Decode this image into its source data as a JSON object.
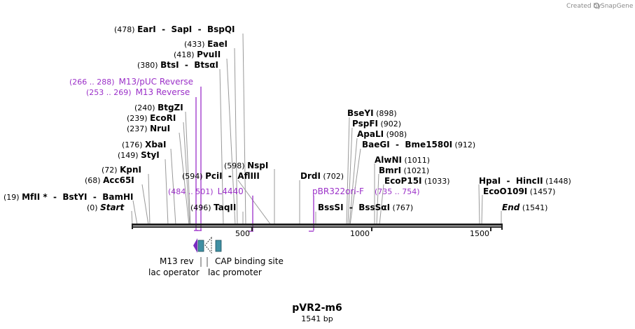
{
  "watermark": {
    "created_by": "Created by",
    "brand": "SnapGene"
  },
  "plasmid": {
    "name": "pVR2-m6",
    "size_label": "1541 bp"
  },
  "axis": {
    "range": [
      0,
      1541
    ],
    "ticks": [
      {
        "value": 500,
        "label": "500"
      },
      {
        "value": 1000,
        "label": "1000"
      },
      {
        "value": 1500,
        "label": "1500"
      }
    ]
  },
  "colors": {
    "primer": "#9b30c8",
    "feature_teal": "#3f8fa3",
    "feature_purple": "#7a2bbf",
    "line": "#999999"
  },
  "sites": [
    {
      "id": "earI",
      "parts": [
        {
          "t": "(478) ",
          "cls": "num"
        },
        {
          "t": "EarI",
          "cls": "b"
        },
        {
          "t": "  -  ",
          "cls": "b"
        },
        {
          "t": "SapI",
          "cls": "b"
        },
        {
          "t": "  -  ",
          "cls": "b"
        },
        {
          "t": "BspQI",
          "cls": "b"
        }
      ]
    },
    {
      "id": "eaeI",
      "parts": [
        {
          "t": "(433) ",
          "cls": "num"
        },
        {
          "t": "EaeI",
          "cls": "b"
        }
      ]
    },
    {
      "id": "pvuII",
      "parts": [
        {
          "t": "(418) ",
          "cls": "num"
        },
        {
          "t": "PvuII",
          "cls": "b"
        }
      ]
    },
    {
      "id": "btsI",
      "parts": [
        {
          "t": "(380) ",
          "cls": "num"
        },
        {
          "t": "BtsI",
          "cls": "b"
        },
        {
          "t": "  -  ",
          "cls": "b"
        },
        {
          "t": "BtsαI",
          "cls": "b"
        }
      ]
    },
    {
      "id": "btgZI",
      "parts": [
        {
          "t": "(240) ",
          "cls": "num"
        },
        {
          "t": "BtgZI",
          "cls": "b"
        }
      ]
    },
    {
      "id": "ecoRI",
      "parts": [
        {
          "t": "(239) ",
          "cls": "num"
        },
        {
          "t": "EcoRI",
          "cls": "b"
        }
      ]
    },
    {
      "id": "nruI",
      "parts": [
        {
          "t": "(237) ",
          "cls": "num"
        },
        {
          "t": "NruI",
          "cls": "b"
        }
      ]
    },
    {
      "id": "xbaI",
      "parts": [
        {
          "t": "(176) ",
          "cls": "num"
        },
        {
          "t": "XbaI",
          "cls": "b"
        }
      ]
    },
    {
      "id": "styI",
      "parts": [
        {
          "t": "(149) ",
          "cls": "num"
        },
        {
          "t": "StyI",
          "cls": "b"
        }
      ]
    },
    {
      "id": "kpnI",
      "parts": [
        {
          "t": "(72) ",
          "cls": "num"
        },
        {
          "t": "KpnI",
          "cls": "b"
        }
      ]
    },
    {
      "id": "acc65I",
      "parts": [
        {
          "t": "(68) ",
          "cls": "num"
        },
        {
          "t": "Acc65I",
          "cls": "b"
        }
      ]
    },
    {
      "id": "mfII",
      "parts": [
        {
          "t": "(19) ",
          "cls": "num"
        },
        {
          "t": "MfII *",
          "cls": "b"
        },
        {
          "t": "  -  ",
          "cls": "b"
        },
        {
          "t": "BstYI",
          "cls": "b"
        },
        {
          "t": "  -  ",
          "cls": "b"
        },
        {
          "t": "BamHI",
          "cls": "b"
        }
      ]
    },
    {
      "id": "start",
      "parts": [
        {
          "t": "(0) ",
          "cls": "num"
        },
        {
          "t": "Start",
          "cls": "b it"
        }
      ]
    },
    {
      "id": "pciI",
      "parts": [
        {
          "t": "(594) ",
          "cls": "num"
        },
        {
          "t": "PciI",
          "cls": "b"
        },
        {
          "t": "  -  ",
          "cls": "b"
        },
        {
          "t": "AflIII",
          "cls": "b"
        }
      ]
    },
    {
      "id": "nspI",
      "parts": [
        {
          "t": "(598) ",
          "cls": "num"
        },
        {
          "t": "NspI",
          "cls": "b"
        }
      ]
    },
    {
      "id": "taqII",
      "parts": [
        {
          "t": "(496) ",
          "cls": "num"
        },
        {
          "t": "TaqII",
          "cls": "b"
        }
      ]
    },
    {
      "id": "drdI",
      "parts": [
        {
          "t": "DrdI",
          "cls": "b"
        },
        {
          "t": " (702)",
          "cls": "num"
        }
      ]
    },
    {
      "id": "bssSI",
      "parts": [
        {
          "t": "BssSI",
          "cls": "b"
        },
        {
          "t": "  -  ",
          "cls": "b"
        },
        {
          "t": "BssSαI",
          "cls": "b"
        },
        {
          "t": " (767)",
          "cls": "num"
        }
      ]
    },
    {
      "id": "bseYI",
      "parts": [
        {
          "t": "BseYI",
          "cls": "b"
        },
        {
          "t": " (898)",
          "cls": "num"
        }
      ]
    },
    {
      "id": "pspFI",
      "parts": [
        {
          "t": "PspFI",
          "cls": "b"
        },
        {
          "t": " (902)",
          "cls": "num"
        }
      ]
    },
    {
      "id": "apaLI",
      "parts": [
        {
          "t": "ApaLI",
          "cls": "b"
        },
        {
          "t": " (908)",
          "cls": "num"
        }
      ]
    },
    {
      "id": "baeGI",
      "parts": [
        {
          "t": "BaeGI",
          "cls": "b"
        },
        {
          "t": "  -  ",
          "cls": "b"
        },
        {
          "t": "Bme1580I",
          "cls": "b"
        },
        {
          "t": " (912)",
          "cls": "num"
        }
      ]
    },
    {
      "id": "alwNI",
      "parts": [
        {
          "t": "AlwNI",
          "cls": "b"
        },
        {
          "t": " (1011)",
          "cls": "num"
        }
      ]
    },
    {
      "id": "bmrI",
      "parts": [
        {
          "t": "BmrI",
          "cls": "b"
        },
        {
          "t": " (1021)",
          "cls": "num"
        }
      ]
    },
    {
      "id": "ecoP15I",
      "parts": [
        {
          "t": "EcoP15I",
          "cls": "b"
        },
        {
          "t": " (1033)",
          "cls": "num"
        }
      ]
    },
    {
      "id": "hpaI",
      "parts": [
        {
          "t": "HpaI",
          "cls": "b"
        },
        {
          "t": "  -  ",
          "cls": "b"
        },
        {
          "t": "HincII",
          "cls": "b"
        },
        {
          "t": " (1448)",
          "cls": "num"
        }
      ]
    },
    {
      "id": "ecoO109I",
      "parts": [
        {
          "t": "EcoO109I",
          "cls": "b"
        },
        {
          "t": " (1457)",
          "cls": "num"
        }
      ]
    },
    {
      "id": "end",
      "parts": [
        {
          "t": "End",
          "cls": "b it"
        },
        {
          "t": " (1541)",
          "cls": "num"
        }
      ]
    }
  ],
  "primers": [
    {
      "id": "m13puc",
      "range_text": "(266 .. 288)",
      "name": "M13/pUC Reverse"
    },
    {
      "id": "m13rev",
      "range_text": "(253 .. 269)",
      "name": "M13 Reverse"
    },
    {
      "id": "l4440",
      "range_text": "(484 .. 501)",
      "name": "L4440"
    },
    {
      "id": "pbr322",
      "range_text": "",
      "name": "pBR322ori-F"
    },
    {
      "id": "p735",
      "range_text": "(735 .. 754)",
      "name": ""
    }
  ],
  "features": [
    {
      "id": "m13rev-feature",
      "label": "M13 rev"
    },
    {
      "id": "cap",
      "label": "CAP binding site"
    },
    {
      "id": "lacop",
      "label": "lac operator"
    },
    {
      "id": "lacprom",
      "label": "lac promoter"
    }
  ]
}
